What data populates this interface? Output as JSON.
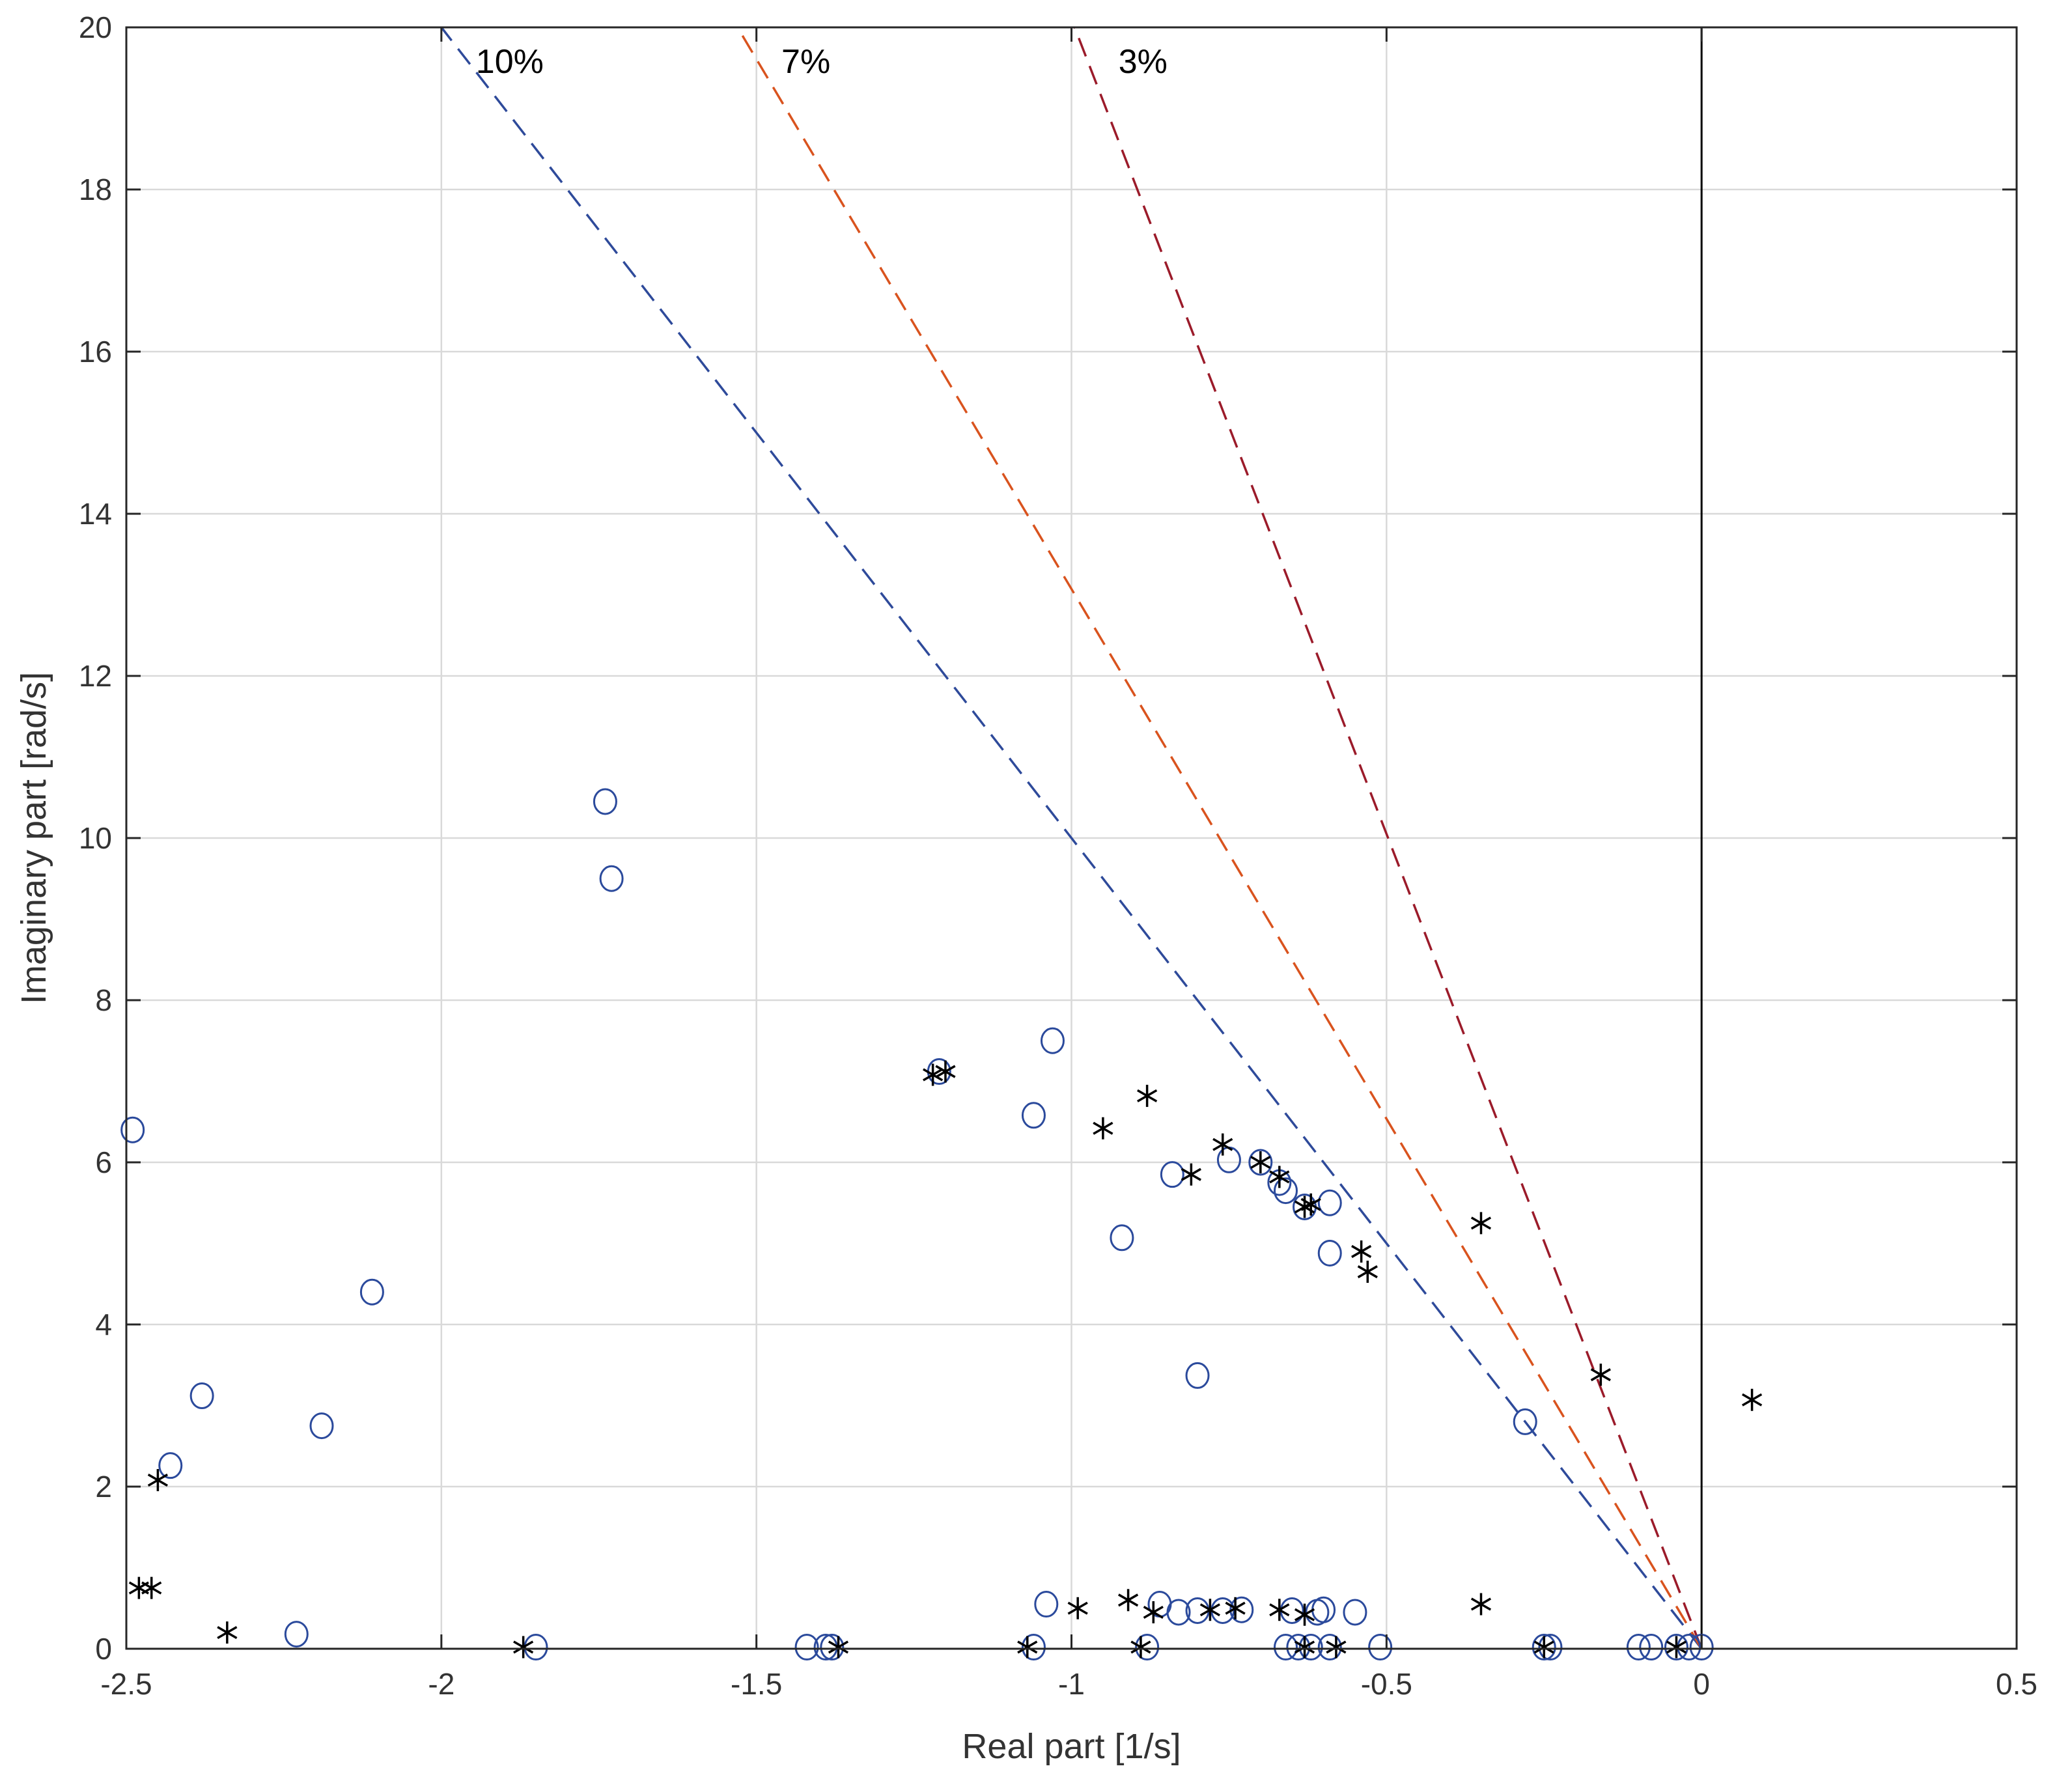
{
  "chart_data": {
    "type": "scatter",
    "xlabel": "Real part [1/s]",
    "ylabel": "Imaginary part [rad/s]",
    "xlim": [
      -2.5,
      0.5
    ],
    "ylim": [
      0,
      20
    ],
    "xticks": [
      -2.5,
      -2,
      -1.5,
      -1,
      -0.5,
      0,
      0.5
    ],
    "xtick_labels": [
      "-2.5",
      "-2",
      "-1.5",
      "-1",
      "-0.5",
      "0",
      "0.5"
    ],
    "yticks": [
      0,
      2,
      4,
      6,
      8,
      10,
      12,
      14,
      16,
      18,
      20
    ],
    "ytick_labels": [
      "0",
      "2",
      "4",
      "6",
      "8",
      "10",
      "12",
      "14",
      "16",
      "18",
      "20"
    ],
    "grid": true,
    "imag_axis_line_x": 0,
    "damping_lines": [
      {
        "label": "10%",
        "end": [
          -2.0,
          20
        ],
        "color": "#2E4A9A"
      },
      {
        "label": "7%",
        "end": [
          -1.53,
          20
        ],
        "color": "#D9531E"
      },
      {
        "label": "3%",
        "end": [
          -0.995,
          20
        ],
        "color": "#9B1B2A"
      }
    ],
    "series": [
      {
        "marker": "circle",
        "color": "#2B4A9C",
        "points": [
          [
            -2.49,
            6.4
          ],
          [
            -2.38,
            3.12
          ],
          [
            -2.43,
            2.26
          ],
          [
            -2.19,
            2.75
          ],
          [
            -2.11,
            4.4
          ],
          [
            -2.23,
            0.18
          ],
          [
            -1.85,
            0.02
          ],
          [
            -1.74,
            10.45
          ],
          [
            -1.73,
            9.5
          ],
          [
            -1.42,
            0.02
          ],
          [
            -1.39,
            0.02
          ],
          [
            -1.38,
            0.02
          ],
          [
            -1.21,
            7.12
          ],
          [
            -1.03,
            7.5
          ],
          [
            -1.06,
            6.58
          ],
          [
            -1.04,
            0.55
          ],
          [
            -1.06,
            0.02
          ],
          [
            -0.92,
            5.07
          ],
          [
            -0.84,
            5.85
          ],
          [
            -0.75,
            6.03
          ],
          [
            -0.7,
            6.0
          ],
          [
            -0.67,
            5.75
          ],
          [
            -0.66,
            5.65
          ],
          [
            -0.63,
            5.45
          ],
          [
            -0.59,
            5.5
          ],
          [
            -0.59,
            4.88
          ],
          [
            -0.8,
            3.37
          ],
          [
            -0.86,
            0.55
          ],
          [
            -0.83,
            0.45
          ],
          [
            -0.8,
            0.47
          ],
          [
            -0.76,
            0.47
          ],
          [
            -0.73,
            0.48
          ],
          [
            -0.65,
            0.47
          ],
          [
            -0.61,
            0.45
          ],
          [
            -0.6,
            0.48
          ],
          [
            -0.55,
            0.45
          ],
          [
            -0.88,
            0.02
          ],
          [
            -0.66,
            0.02
          ],
          [
            -0.64,
            0.02
          ],
          [
            -0.62,
            0.02
          ],
          [
            -0.59,
            0.02
          ],
          [
            -0.51,
            0.02
          ],
          [
            -0.28,
            2.8
          ],
          [
            -0.25,
            0.02
          ],
          [
            -0.24,
            0.02
          ],
          [
            -0.1,
            0.02
          ],
          [
            -0.08,
            0.02
          ],
          [
            -0.04,
            0.02
          ],
          [
            -0.02,
            0.02
          ],
          [
            0.0,
            0.02
          ]
        ]
      },
      {
        "marker": "asterisk",
        "color": "#000000",
        "points": [
          [
            -2.45,
            2.08
          ],
          [
            -2.48,
            0.75
          ],
          [
            -2.46,
            0.75
          ],
          [
            -2.34,
            0.2
          ],
          [
            -1.87,
            0.02
          ],
          [
            -1.37,
            0.02
          ],
          [
            -1.22,
            7.08
          ],
          [
            -1.2,
            7.12
          ],
          [
            -1.07,
            0.02
          ],
          [
            -0.99,
            0.5
          ],
          [
            -0.95,
            6.42
          ],
          [
            -0.91,
            0.6
          ],
          [
            -0.89,
            0.02
          ],
          [
            -0.88,
            6.82
          ],
          [
            -0.87,
            0.45
          ],
          [
            -0.81,
            5.85
          ],
          [
            -0.78,
            0.48
          ],
          [
            -0.76,
            6.22
          ],
          [
            -0.74,
            0.5
          ],
          [
            -0.7,
            6.0
          ],
          [
            -0.67,
            5.82
          ],
          [
            -0.67,
            0.48
          ],
          [
            -0.63,
            0.42
          ],
          [
            -0.63,
            5.45
          ],
          [
            -0.62,
            5.48
          ],
          [
            -0.63,
            0.02
          ],
          [
            -0.58,
            0.02
          ],
          [
            -0.54,
            4.9
          ],
          [
            -0.53,
            4.65
          ],
          [
            -0.35,
            5.25
          ],
          [
            -0.35,
            0.55
          ],
          [
            -0.25,
            0.02
          ],
          [
            -0.16,
            3.38
          ],
          [
            -0.04,
            0.02
          ],
          [
            0.08,
            3.07
          ]
        ]
      }
    ]
  }
}
